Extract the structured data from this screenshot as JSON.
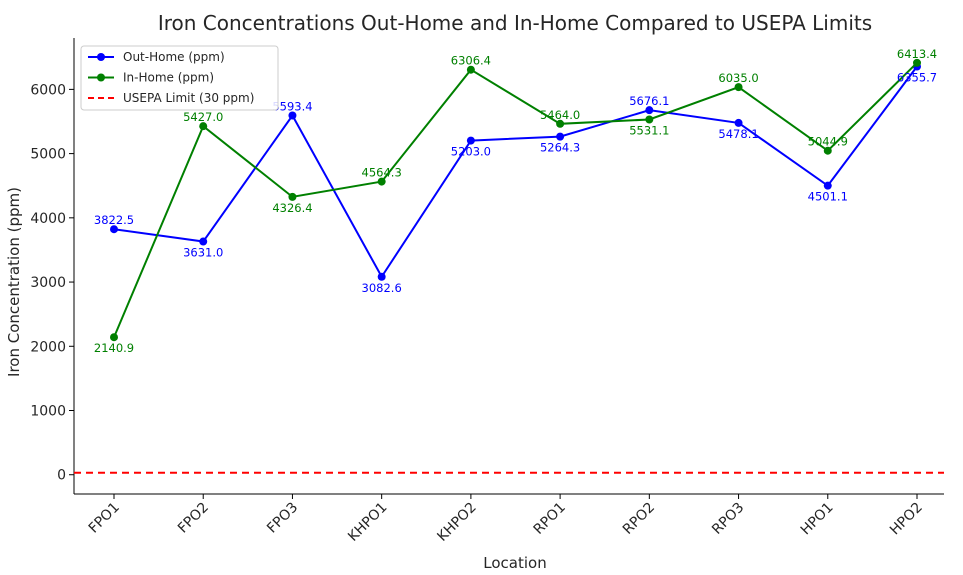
{
  "chart_data": {
    "type": "line",
    "title": "Iron Concentrations Out-Home and In-Home Compared to USEPA Limits",
    "xlabel": "Location",
    "ylabel": "Iron Concentration (ppm)",
    "categories": [
      "FPO1",
      "FPO2",
      "FPO3",
      "KHPO1",
      "KHPO2",
      "RPO1",
      "RPO2",
      "RPO3",
      "HPO1",
      "HPO2"
    ],
    "ylim": [
      -300,
      6800
    ],
    "yticks": [
      0,
      1000,
      2000,
      3000,
      4000,
      5000,
      6000
    ],
    "grid": false,
    "legend_position": "top-left",
    "series": [
      {
        "name": "Out-Home (ppm)",
        "color": "#0000ff",
        "marker": "circle",
        "values": [
          3822.5,
          3631.0,
          5593.4,
          3082.6,
          5203.0,
          5264.3,
          5676.1,
          5478.1,
          4501.1,
          6355.7
        ],
        "labels": [
          "3822.5",
          "3631.0",
          "5593.4",
          "3082.6",
          "5203.0",
          "5264.3",
          "5676.1",
          "5478.1",
          "4501.1",
          "6355.7"
        ]
      },
      {
        "name": "In-Home (ppm)",
        "color": "#008000",
        "marker": "circle",
        "values": [
          2140.9,
          5427.0,
          4326.4,
          4564.3,
          6306.4,
          5464.0,
          5531.1,
          6035.0,
          5044.9,
          6413.4
        ],
        "labels": [
          "2140.9",
          "5427.0",
          "4326.4",
          "4564.3",
          "6306.4",
          "5464.0",
          "5531.1",
          "6035.0",
          "5044.9",
          "6413.4"
        ]
      }
    ],
    "reference_lines": [
      {
        "name": "USEPA Limit (30 ppm)",
        "value": 30,
        "color": "#ff0000",
        "style": "dashed"
      }
    ]
  }
}
